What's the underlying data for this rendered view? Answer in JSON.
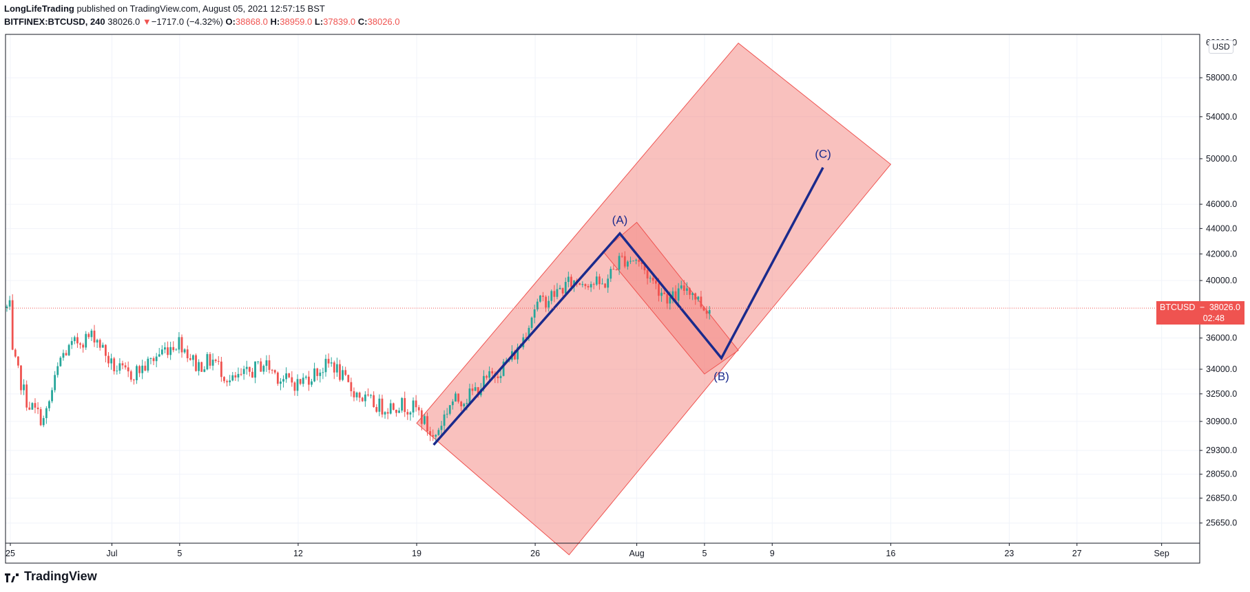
{
  "header": {
    "author": "LongLifeTrading",
    "published_text": " published on TradingView.com, August 05, 2021 12:57:15 BST",
    "symbol": "BITFINEX:BTCUSD, 240",
    "last": "38026.0",
    "change_arrow": "▼",
    "change": "−1717.0 (−4.32%)",
    "o_label": "O:",
    "o_value": "38868.0",
    "h_label": "H:",
    "h_value": "38959.0",
    "l_label": "L:",
    "l_value": "37839.0",
    "c_label": "C:",
    "c_value": "38026.0"
  },
  "price_axis": {
    "currency_button": "USD"
  },
  "price_tag": {
    "symbol": "BTCUSD",
    "price": "38026.0",
    "countdown": "02:48"
  },
  "footer": {
    "brand": "TradingView",
    "logo_icon": "tradingview-logo-icon"
  },
  "colors": {
    "up": "#26a69a",
    "down": "#ef5350",
    "channel": "#f4837d",
    "wave": "#1a2a8c",
    "grid": "#f0f3fa"
  },
  "chart_data": {
    "type": "candlestick",
    "scale": "log",
    "ylim": [
      24700,
      62000
    ],
    "y_ticks": [
      25650,
      26850,
      28050,
      29300,
      30900,
      32500,
      34000,
      36000,
      40000,
      42000,
      44000,
      46000,
      50000,
      54000,
      58000
    ],
    "y_tick_labels": [
      "25650.0",
      "26850.0",
      "28050.0",
      "29300.0",
      "30900.0",
      "32500.0",
      "34000.0",
      "36000.0",
      "40000.0",
      "42000.0",
      "44000.0",
      "46000.0",
      "50000.0",
      "54000.0",
      "58000.0"
    ],
    "x_ticks": [
      {
        "label": "25",
        "date": "2021-06-25"
      },
      {
        "label": "Jul",
        "date": "2021-07-01"
      },
      {
        "label": "5",
        "date": "2021-07-05"
      },
      {
        "label": "12",
        "date": "2021-07-12"
      },
      {
        "label": "19",
        "date": "2021-07-19"
      },
      {
        "label": "26",
        "date": "2021-07-26"
      },
      {
        "label": "Aug",
        "date": "2021-08-01"
      },
      {
        "label": "5",
        "date": "2021-08-05"
      },
      {
        "label": "9",
        "date": "2021-08-09"
      },
      {
        "label": "16",
        "date": "2021-08-16"
      },
      {
        "label": "23",
        "date": "2021-08-23"
      },
      {
        "label": "27",
        "date": "2021-08-27"
      },
      {
        "label": "Sep",
        "date": "2021-09-01"
      }
    ],
    "last_price": 38026.0,
    "price_path": [
      [
        "2021-06-25",
        35300
      ],
      [
        "2021-06-26",
        32000
      ],
      [
        "2021-06-27",
        30900
      ],
      [
        "2021-06-28",
        34800
      ],
      [
        "2021-06-29",
        35800
      ],
      [
        "2021-06-30",
        36200
      ],
      [
        "2021-07-01",
        34200
      ],
      [
        "2021-07-02",
        33600
      ],
      [
        "2021-07-03",
        34200
      ],
      [
        "2021-07-04",
        35200
      ],
      [
        "2021-07-05",
        35800
      ],
      [
        "2021-07-06",
        34200
      ],
      [
        "2021-07-07",
        34600
      ],
      [
        "2021-07-08",
        33200
      ],
      [
        "2021-07-09",
        33700
      ],
      [
        "2021-07-10",
        34400
      ],
      [
        "2021-07-11",
        33400
      ],
      [
        "2021-07-12",
        33100
      ],
      [
        "2021-07-13",
        33800
      ],
      [
        "2021-07-14",
        34400
      ],
      [
        "2021-07-15",
        32900
      ],
      [
        "2021-07-16",
        32100
      ],
      [
        "2021-07-17",
        31700
      ],
      [
        "2021-07-18",
        31900
      ],
      [
        "2021-07-19",
        31600
      ],
      [
        "2021-07-20",
        29900
      ],
      [
        "2021-07-21",
        32000
      ],
      [
        "2021-07-22",
        32300
      ],
      [
        "2021-07-23",
        33200
      ],
      [
        "2021-07-24",
        34100
      ],
      [
        "2021-07-25",
        35200
      ],
      [
        "2021-07-26",
        38200
      ],
      [
        "2021-07-27",
        38900
      ],
      [
        "2021-07-28",
        39800
      ],
      [
        "2021-07-29",
        40000
      ],
      [
        "2021-07-30",
        39600
      ],
      [
        "2021-07-31",
        41600
      ],
      [
        "2021-08-01",
        41600
      ],
      [
        "2021-08-02",
        39800
      ],
      [
        "2021-08-03",
        38600
      ],
      [
        "2021-08-04",
        39600
      ],
      [
        "2021-08-05",
        38026
      ]
    ],
    "annotations": [
      {
        "type": "parallel-channel",
        "label": "",
        "corners": [
          [
            "2021-07-19",
            30800
          ],
          [
            "2021-08-07",
            61800
          ],
          [
            "2021-08-16",
            49500
          ],
          [
            "2021-07-28",
            24200
          ]
        ]
      },
      {
        "type": "parallel-channel",
        "label": "",
        "corners": [
          [
            "2021-07-30",
            42200
          ],
          [
            "2021-08-01",
            44500
          ],
          [
            "2021-08-07",
            35200
          ],
          [
            "2021-08-05",
            33700
          ]
        ]
      },
      {
        "type": "wave",
        "points": [
          {
            "label": "",
            "date": "2021-07-20",
            "price": 29600
          },
          {
            "label": "(A)",
            "date": "2021-07-31",
            "price": 43600
          },
          {
            "label": "(B)",
            "date": "2021-08-06",
            "price": 34700
          },
          {
            "label": "(C)",
            "date": "2021-08-12",
            "price": 49200
          }
        ]
      }
    ]
  }
}
